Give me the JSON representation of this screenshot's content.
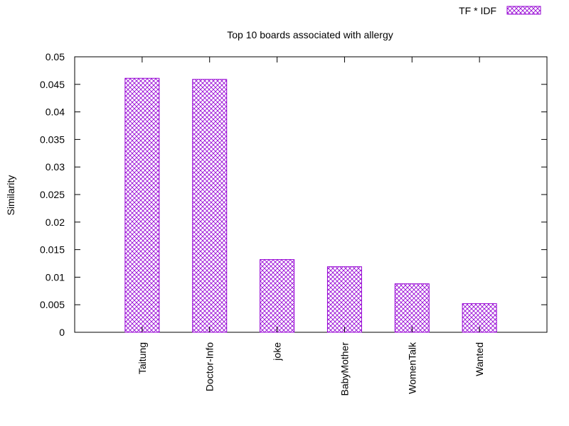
{
  "chart_data": {
    "type": "bar",
    "title": "Top 10 boards associated with allergy",
    "xlabel": "",
    "ylabel": "Similarity",
    "categories": [
      "Taitung",
      "Doctor-Info",
      "joke",
      "BabyMother",
      "WomenTalk",
      "Wanted"
    ],
    "series": [
      {
        "name": "TF * IDF",
        "values": [
          0.0461,
          0.0459,
          0.0132,
          0.0119,
          0.0088,
          0.0052
        ]
      }
    ],
    "ylim": [
      0,
      0.05
    ],
    "yticks": [
      0,
      0.005,
      0.01,
      0.015,
      0.02,
      0.025,
      0.03,
      0.035,
      0.04,
      0.045,
      0.05
    ],
    "ytick_labels": [
      "0",
      "0.005",
      "0.01",
      "0.015",
      "0.02",
      "0.025",
      "0.03",
      "0.035",
      "0.04",
      "0.045",
      "0.05"
    ],
    "grid": false,
    "legend_position": "top-right",
    "bar_pattern": "crosshatch",
    "colors": {
      "bar": "#9400d3",
      "axis": "#000000",
      "background": "#ffffff"
    }
  }
}
